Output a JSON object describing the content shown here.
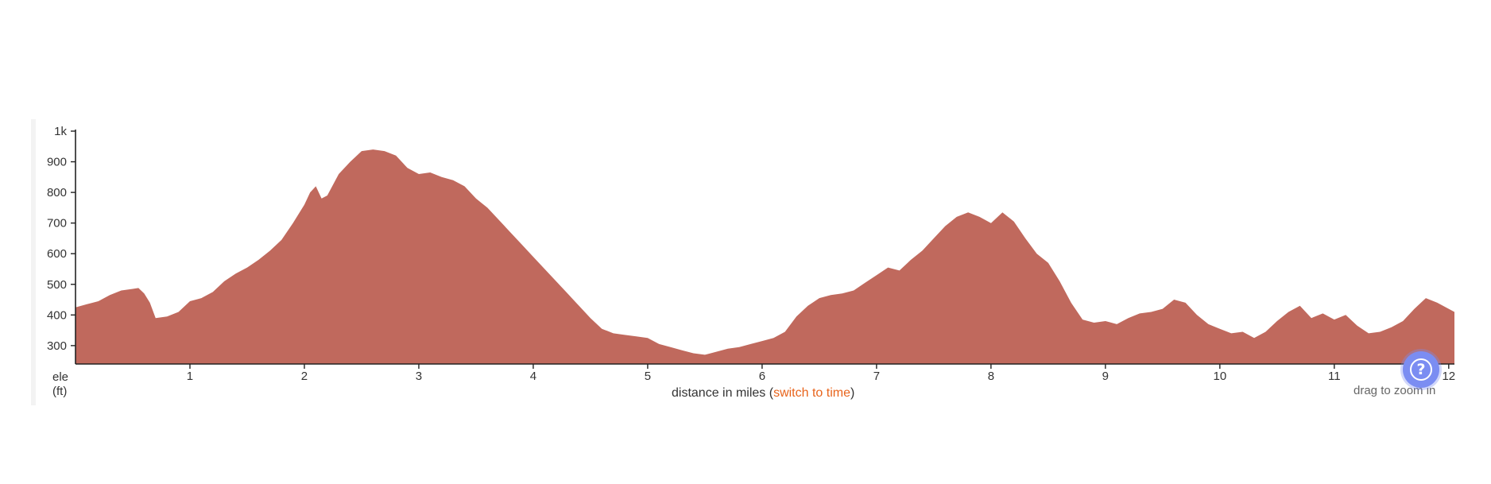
{
  "chart_data": {
    "type": "area",
    "title": "",
    "xlabel": "distance in miles",
    "ylabel": "ele",
    "yunit": "(ft)",
    "xlim": [
      0,
      12.05
    ],
    "ylim": [
      240,
      1000
    ],
    "x_ticks": [
      "1",
      "2",
      "3",
      "4",
      "5",
      "6",
      "7",
      "8",
      "9",
      "10",
      "11",
      "12"
    ],
    "y_ticks": [
      "300",
      "400",
      "500",
      "600",
      "700",
      "800",
      "900",
      "1k"
    ],
    "fill_color": "#c0695d",
    "grid": false,
    "x": [
      0,
      0.1,
      0.2,
      0.3,
      0.4,
      0.5,
      0.55,
      0.6,
      0.65,
      0.7,
      0.8,
      0.9,
      1.0,
      1.1,
      1.2,
      1.3,
      1.4,
      1.5,
      1.6,
      1.7,
      1.8,
      1.9,
      2.0,
      2.05,
      2.1,
      2.15,
      2.2,
      2.3,
      2.4,
      2.5,
      2.6,
      2.7,
      2.8,
      2.9,
      3.0,
      3.1,
      3.2,
      3.3,
      3.4,
      3.5,
      3.6,
      3.7,
      3.8,
      3.9,
      4.0,
      4.1,
      4.2,
      4.3,
      4.4,
      4.5,
      4.6,
      4.7,
      4.8,
      4.9,
      5.0,
      5.1,
      5.2,
      5.3,
      5.4,
      5.5,
      5.6,
      5.7,
      5.8,
      5.9,
      6.0,
      6.1,
      6.2,
      6.3,
      6.4,
      6.5,
      6.6,
      6.7,
      6.8,
      6.9,
      7.0,
      7.1,
      7.2,
      7.3,
      7.4,
      7.5,
      7.6,
      7.7,
      7.8,
      7.9,
      8.0,
      8.1,
      8.2,
      8.3,
      8.4,
      8.5,
      8.6,
      8.7,
      8.8,
      8.9,
      9.0,
      9.1,
      9.2,
      9.3,
      9.4,
      9.5,
      9.6,
      9.7,
      9.8,
      9.9,
      10.0,
      10.1,
      10.2,
      10.3,
      10.4,
      10.5,
      10.6,
      10.7,
      10.8,
      10.9,
      11.0,
      11.1,
      11.2,
      11.3,
      11.4,
      11.5,
      11.6,
      11.7,
      11.8,
      11.9,
      12.05
    ],
    "values": [
      425,
      435,
      445,
      465,
      480,
      485,
      488,
      470,
      440,
      390,
      395,
      410,
      445,
      455,
      475,
      510,
      535,
      555,
      580,
      610,
      645,
      700,
      760,
      800,
      820,
      780,
      790,
      860,
      900,
      935,
      940,
      935,
      920,
      880,
      860,
      865,
      850,
      840,
      820,
      780,
      750,
      710,
      670,
      630,
      590,
      550,
      510,
      470,
      430,
      390,
      355,
      340,
      335,
      330,
      325,
      305,
      295,
      285,
      275,
      270,
      280,
      290,
      295,
      305,
      315,
      325,
      345,
      395,
      430,
      455,
      465,
      470,
      480,
      505,
      530,
      555,
      545,
      580,
      610,
      650,
      690,
      720,
      735,
      720,
      700,
      735,
      705,
      650,
      600,
      570,
      510,
      440,
      385,
      375,
      380,
      370,
      390,
      405,
      410,
      420,
      450,
      440,
      400,
      370,
      355,
      340,
      345,
      325,
      345,
      380,
      410,
      430,
      390,
      405,
      385,
      400,
      365,
      340,
      345,
      360,
      380,
      420,
      455,
      440,
      410
    ]
  },
  "ui": {
    "switch_prefix": "(",
    "switch_link": "switch to time",
    "switch_suffix": ")",
    "drag_hint": "drag to zoom in",
    "help_icon_glyph": "?",
    "help_color": "#7b8df2",
    "link_color": "#e8641c"
  }
}
